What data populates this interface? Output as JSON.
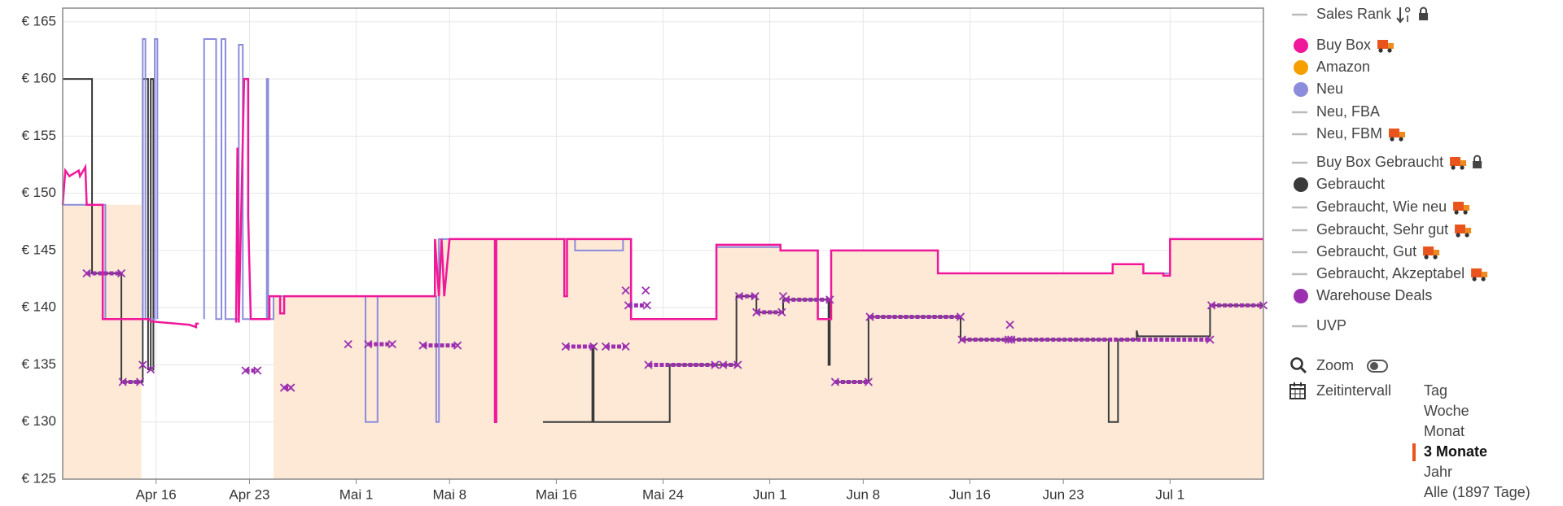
{
  "chart_data": {
    "type": "line",
    "xlim": [
      0,
      90
    ],
    "xticks": [
      {
        "value": 7,
        "label": "Apr 16"
      },
      {
        "value": 14,
        "label": "Apr 23"
      },
      {
        "value": 22,
        "label": "Mai 1"
      },
      {
        "value": 29,
        "label": "Mai 8"
      },
      {
        "value": 37,
        "label": "Mai 16"
      },
      {
        "value": 45,
        "label": "Mai 24"
      },
      {
        "value": 53,
        "label": "Jun 1"
      },
      {
        "value": 60,
        "label": "Jun 8"
      },
      {
        "value": 68,
        "label": "Jun 16"
      },
      {
        "value": 75,
        "label": "Jun 23"
      },
      {
        "value": 83,
        "label": "Jul 1"
      }
    ],
    "ylim": [
      125,
      166.2
    ],
    "yticks": [
      {
        "value": 125,
        "label": "€ 125"
      },
      {
        "value": 130,
        "label": "€ 130"
      },
      {
        "value": 135,
        "label": "€ 135"
      },
      {
        "value": 140,
        "label": "€ 140"
      },
      {
        "value": 145,
        "label": "€ 145"
      },
      {
        "value": 150,
        "label": "€ 150"
      },
      {
        "value": 155,
        "label": "€ 155"
      },
      {
        "value": 160,
        "label": "€ 160"
      },
      {
        "value": 165,
        "label": "€ 165"
      }
    ],
    "grid": true,
    "series": [
      {
        "name": "Sales Rank",
        "color": "#bbbbbb",
        "marker": "dash",
        "icons": [
          "sort",
          "lock"
        ],
        "style": "line",
        "x": [],
        "values": []
      },
      {
        "name": "Buy Box",
        "color": "#f0189a",
        "marker": "dot",
        "icons": [
          "truck"
        ],
        "style": "line",
        "x": [
          0,
          0.2,
          0.5,
          1.2,
          1.3,
          1.7,
          1.8,
          3,
          3,
          6.5,
          6.6,
          9.5,
          10,
          10,
          10.2,
          10.3,
          13,
          13.1,
          13.2,
          13.6,
          13.9,
          13.9,
          14.1,
          15.5,
          15.5,
          16.3,
          16.3,
          16.6,
          16.6,
          27.9,
          27.9,
          28.2,
          28.4,
          28.6,
          29,
          32.4,
          32.4,
          32.5,
          32.5,
          37.6,
          37.6,
          37.8,
          37.8,
          42.6,
          42.6,
          49,
          49,
          53.8,
          53.8,
          56.6,
          56.6,
          57.6,
          57.6,
          65.6,
          65.6,
          78.7,
          78.7,
          81,
          81,
          82.5,
          82.5,
          83,
          83,
          90
        ],
        "values": [
          149,
          152,
          151.5,
          152,
          151.5,
          152.3,
          149,
          149,
          139,
          139,
          138.8,
          138.5,
          138.3,
          138.6,
          138.6,
          null,
          138.7,
          154,
          138.7,
          160,
          160,
          148,
          139,
          139,
          141,
          141,
          139.5,
          139.5,
          141,
          141,
          146,
          141,
          146,
          141,
          146,
          146,
          130,
          130,
          146,
          146,
          141,
          141,
          146,
          146,
          139,
          139,
          145.5,
          145.5,
          145,
          145,
          139,
          139,
          145,
          145,
          143,
          143,
          143.8,
          143.8,
          143,
          143,
          142.8,
          142.8,
          146,
          146
        ]
      },
      {
        "name": "Amazon",
        "color": "#f5a000",
        "area_color": "#fde9d6",
        "marker": "dot",
        "icons": [],
        "style": "area",
        "x": [
          0,
          5.9,
          6,
          15.8,
          27.9,
          27.9,
          42.6,
          42.6,
          49,
          49,
          53.8,
          53.8,
          56.6,
          56.6,
          57.6,
          57.6,
          65.6,
          65.6,
          78.7,
          78.7,
          81,
          81,
          83,
          83,
          90
        ],
        "values": [
          149,
          149,
          null,
          141,
          141,
          146,
          146,
          139,
          139,
          145.5,
          145.5,
          145,
          145,
          139,
          139,
          145,
          145,
          143,
          143,
          143.8,
          143.8,
          143,
          143,
          146,
          146
        ]
      },
      {
        "name": "Neu",
        "color": "#8c8cdc",
        "marker": "dot",
        "icons": [],
        "style": "line",
        "x": [
          0,
          3.2,
          3.2,
          6,
          6,
          6.2,
          6.2,
          6.9,
          6.9,
          7.1,
          7.1,
          7.2,
          10.6,
          10.6,
          11.5,
          11.5,
          11.9,
          11.9,
          12.2,
          12.2,
          13.2,
          13.2,
          13.5,
          13.5,
          15.3,
          15.3,
          15.4,
          15.4,
          15.8,
          15.8,
          22.7,
          22.7,
          23.6,
          23.6,
          28,
          28,
          28.2,
          28.2,
          38.4,
          38.4,
          42,
          42,
          42.6,
          42.6,
          49,
          49,
          53.8,
          53.8,
          56.6,
          56.6,
          57.6,
          57.6,
          65.6,
          65.6,
          78.7,
          78.7,
          81,
          81,
          83,
          83,
          90
        ],
        "values": [
          149,
          149,
          139,
          139,
          163.5,
          163.5,
          139,
          139,
          163.5,
          163.5,
          139,
          null,
          139,
          163.5,
          163.5,
          139,
          139,
          163.5,
          163.5,
          139,
          139,
          163,
          163,
          139,
          139,
          160,
          160,
          139,
          139,
          141,
          141,
          130,
          130,
          141,
          141,
          130,
          130,
          146,
          146,
          145,
          145,
          146,
          146,
          139,
          139,
          145.3,
          145.3,
          145,
          145,
          139,
          139,
          145,
          145,
          143,
          143,
          143.8,
          143.8,
          143,
          143,
          146,
          146
        ]
      },
      {
        "name": "Neu, FBA",
        "color": "#bbbbbb",
        "marker": "dash",
        "icons": [],
        "style": "line",
        "x": [],
        "values": []
      },
      {
        "name": "Neu, FBM",
        "color": "#bbbbbb",
        "marker": "dash",
        "icons": [
          "truck"
        ],
        "style": "line",
        "x": [],
        "values": []
      },
      {
        "name": "Buy Box Gebraucht",
        "color": "#bbbbbb",
        "marker": "dash",
        "icons": [
          "truck",
          "lock"
        ],
        "style": "line",
        "x": [],
        "values": []
      },
      {
        "name": "Gebraucht",
        "color": "#3a3a3a",
        "marker": "dot",
        "icons": [],
        "style": "line",
        "x": [
          0,
          2.2,
          2.2,
          4.4,
          4.4,
          6,
          6,
          6.4,
          6.4,
          6.6,
          6.6,
          6.8,
          6.8,
          7,
          36,
          39.7,
          39.7,
          39.8,
          39.8,
          45.5,
          45.5,
          50.5,
          50.5,
          52,
          52,
          54,
          54,
          57.4,
          57.4,
          57.5,
          57.5,
          57.6,
          57.9,
          60.4,
          60.4,
          67.3,
          67.3,
          78.4,
          78.4,
          79.1,
          79.1,
          80.5,
          80.5,
          80.6,
          86,
          86,
          90
        ],
        "values": [
          160,
          160,
          143,
          143,
          133.5,
          133.5,
          160,
          160,
          134.6,
          134.6,
          160,
          160,
          134.5,
          null,
          130,
          130,
          136.7,
          136.7,
          130,
          130,
          135,
          135,
          141,
          141,
          139.6,
          139.6,
          140.7,
          140.7,
          135,
          135,
          140.7,
          null,
          133.5,
          133.5,
          139.2,
          139.2,
          137.2,
          137.2,
          130,
          130,
          137.2,
          137.2,
          138,
          137.5,
          137.5,
          140.2,
          140.2
        ]
      },
      {
        "name": "Gebraucht, Wie neu",
        "color": "#bbbbbb",
        "marker": "dash",
        "icons": [
          "truck"
        ],
        "style": "line",
        "x": [],
        "values": []
      },
      {
        "name": "Gebraucht, Sehr gut",
        "color": "#bbbbbb",
        "marker": "dash",
        "icons": [
          "truck"
        ],
        "style": "line",
        "x": [],
        "values": []
      },
      {
        "name": "Gebraucht, Gut",
        "color": "#bbbbbb",
        "marker": "dash",
        "icons": [
          "truck"
        ],
        "style": "line",
        "x": [],
        "values": []
      },
      {
        "name": "Gebraucht, Akzeptabel",
        "color": "#bbbbbb",
        "marker": "dash",
        "icons": [
          "truck"
        ],
        "style": "line",
        "x": [],
        "values": []
      },
      {
        "name": "Warehouse Deals",
        "color": "#9b2fb0",
        "marker": "dot",
        "icons": [],
        "style": "markers",
        "x": [
          1.8,
          4.4,
          4.4,
          4.5,
          5.8,
          5.8,
          6,
          6,
          6.6,
          6.6,
          13.7,
          14.6,
          14.6,
          16.6,
          17.1,
          17.1,
          21.4,
          21.4,
          22.9,
          24.7,
          24.7,
          27,
          29.6,
          29.6,
          37.7,
          39.8,
          39.8,
          40.7,
          42.2,
          42.2,
          42.2,
          42.2,
          42.4,
          43.8,
          43.8,
          43.7,
          43.7,
          43.9,
          48.9,
          48.9,
          49.5,
          50.6,
          50.6,
          50.7,
          51.9,
          51.9,
          52,
          53.9,
          53.9,
          54,
          54,
          54.2,
          57.5,
          57.5,
          57.9,
          60.4,
          60.4,
          60.5,
          67.3,
          67.3,
          67.4,
          70.9,
          70.9,
          71,
          71,
          71.1,
          86,
          86,
          86.1,
          90
        ],
        "values": [
          143,
          143,
          null,
          133.5,
          133.5,
          null,
          135,
          null,
          134.6,
          null,
          134.5,
          134.5,
          null,
          133,
          133,
          null,
          136.8,
          null,
          136.8,
          136.8,
          null,
          136.7,
          136.7,
          null,
          136.6,
          136.6,
          null,
          136.6,
          136.6,
          null,
          141.5,
          null,
          140.2,
          140.2,
          null,
          141.5,
          null,
          135,
          135,
          null,
          135,
          135,
          null,
          141,
          141,
          null,
          139.6,
          139.6,
          null,
          141,
          null,
          140.7,
          140.7,
          null,
          133.5,
          133.5,
          null,
          139.2,
          139.2,
          null,
          137.2,
          137.2,
          null,
          138.5,
          null,
          137.2,
          137.2,
          null,
          140.2,
          140.2
        ]
      },
      {
        "name": "UVP",
        "color": "#bbbbbb",
        "marker": "dash",
        "icons": [],
        "style": "line",
        "x": [],
        "values": []
      }
    ]
  },
  "controls": {
    "zoom": "Zoom",
    "interval_label": "Zeitintervall",
    "intervals": [
      "Tag",
      "Woche",
      "Monat",
      "3 Monate",
      "Jahr",
      "Alle (1897 Tage)"
    ],
    "selected": 3
  }
}
